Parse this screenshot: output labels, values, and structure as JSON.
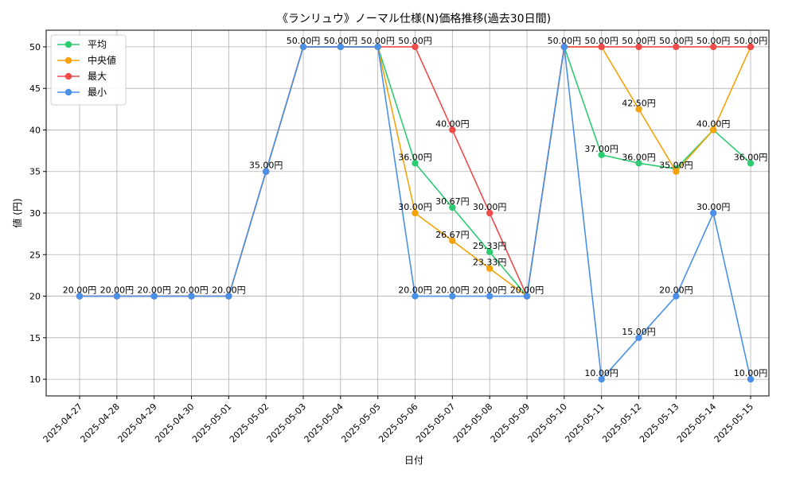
{
  "chart_data": {
    "type": "line",
    "title": "《ランリュウ》ノーマル仕様(N)価格推移(過去30日間)",
    "xlabel": "日付",
    "ylabel": "値 (円)",
    "ylim": [
      8,
      52
    ],
    "yticks": [
      10,
      15,
      20,
      25,
      30,
      35,
      40,
      45,
      50
    ],
    "grid": true,
    "legend_position": "top-left",
    "x": [
      "2025-04-27",
      "2025-04-28",
      "2025-04-29",
      "2025-04-30",
      "2025-05-01",
      "2025-05-02",
      "2025-05-03",
      "2025-05-04",
      "2025-05-05",
      "2025-05-06",
      "2025-05-07",
      "2025-05-08",
      "2025-05-09",
      "2025-05-10",
      "2025-05-11",
      "2025-05-12",
      "2025-05-13",
      "2025-05-14",
      "2025-05-15"
    ],
    "label_suffix": "円",
    "series": [
      {
        "name": "平均",
        "color": "#2ecc71",
        "values": [
          20,
          20,
          20,
          20,
          20,
          35,
          50,
          50,
          50,
          36,
          30.67,
          25.33,
          20,
          50,
          37,
          36,
          35.33,
          40,
          36
        ]
      },
      {
        "name": "中央値",
        "color": "#f5a30a",
        "values": [
          20,
          20,
          20,
          20,
          20,
          35,
          50,
          50,
          50,
          30,
          26.67,
          23.33,
          20,
          50,
          50,
          42.5,
          35,
          40,
          50
        ]
      },
      {
        "name": "最大",
        "color": "#ef4b4b",
        "values": [
          20,
          20,
          20,
          20,
          20,
          35,
          50,
          50,
          50,
          50,
          40,
          30,
          20,
          50,
          50,
          50,
          50,
          50,
          50
        ]
      },
      {
        "name": "最小",
        "color": "#4a90e8",
        "values": [
          20,
          20,
          20,
          20,
          20,
          35,
          50,
          50,
          50,
          20,
          20,
          20,
          20,
          50,
          10,
          15,
          20,
          30,
          10
        ]
      }
    ],
    "data_labels": [
      {
        "x": "2025-04-27",
        "y": 20,
        "text": "20.00円"
      },
      {
        "x": "2025-04-28",
        "y": 20,
        "text": "20.00円"
      },
      {
        "x": "2025-04-29",
        "y": 20,
        "text": "20.00円"
      },
      {
        "x": "2025-04-30",
        "y": 20,
        "text": "20.00円"
      },
      {
        "x": "2025-05-01",
        "y": 20,
        "text": "20.00円"
      },
      {
        "x": "2025-05-02",
        "y": 35,
        "text": "35.00円"
      },
      {
        "x": "2025-05-03",
        "y": 50,
        "text": "50.00円"
      },
      {
        "x": "2025-05-04",
        "y": 50,
        "text": "50.00円"
      },
      {
        "x": "2025-05-05",
        "y": 50,
        "text": "50.00円"
      },
      {
        "x": "2025-05-06",
        "y": 50,
        "text": "50.00円"
      },
      {
        "x": "2025-05-06",
        "y": 36,
        "text": "36.00円"
      },
      {
        "x": "2025-05-06",
        "y": 30,
        "text": "30.00円"
      },
      {
        "x": "2025-05-06",
        "y": 20,
        "text": "20.00円"
      },
      {
        "x": "2025-05-07",
        "y": 40,
        "text": "40.00円"
      },
      {
        "x": "2025-05-07",
        "y": 30.67,
        "text": "30.67円"
      },
      {
        "x": "2025-05-07",
        "y": 26.67,
        "text": "26.67円"
      },
      {
        "x": "2025-05-07",
        "y": 20,
        "text": "20.00円"
      },
      {
        "x": "2025-05-08",
        "y": 30,
        "text": "30.00円"
      },
      {
        "x": "2025-05-08",
        "y": 25.33,
        "text": "25.33円"
      },
      {
        "x": "2025-05-08",
        "y": 23.33,
        "text": "23.33円"
      },
      {
        "x": "2025-05-08",
        "y": 20,
        "text": "20.00円"
      },
      {
        "x": "2025-05-09",
        "y": 20,
        "text": "20.00円"
      },
      {
        "x": "2025-05-10",
        "y": 50,
        "text": "50.00円"
      },
      {
        "x": "2025-05-11",
        "y": 50,
        "text": "50.00円"
      },
      {
        "x": "2025-05-11",
        "y": 37,
        "text": "37.00円"
      },
      {
        "x": "2025-05-11",
        "y": 10,
        "text": "10.00円"
      },
      {
        "x": "2025-05-12",
        "y": 50,
        "text": "50.00円"
      },
      {
        "x": "2025-05-12",
        "y": 42.5,
        "text": "42.50円"
      },
      {
        "x": "2025-05-12",
        "y": 36,
        "text": "36.00円"
      },
      {
        "x": "2025-05-12",
        "y": 15,
        "text": "15.00円"
      },
      {
        "x": "2025-05-13",
        "y": 50,
        "text": "50.00円"
      },
      {
        "x": "2025-05-13",
        "y": 35,
        "text": "35.00円"
      },
      {
        "x": "2025-05-13",
        "y": 20,
        "text": "20.00円"
      },
      {
        "x": "2025-05-14",
        "y": 50,
        "text": "50.00円"
      },
      {
        "x": "2025-05-14",
        "y": 40,
        "text": "40.00円"
      },
      {
        "x": "2025-05-14",
        "y": 30,
        "text": "30.00円"
      },
      {
        "x": "2025-05-15",
        "y": 50,
        "text": "50.00円"
      },
      {
        "x": "2025-05-15",
        "y": 36,
        "text": "36.00円"
      },
      {
        "x": "2025-05-15",
        "y": 10,
        "text": "10.00円"
      }
    ]
  }
}
